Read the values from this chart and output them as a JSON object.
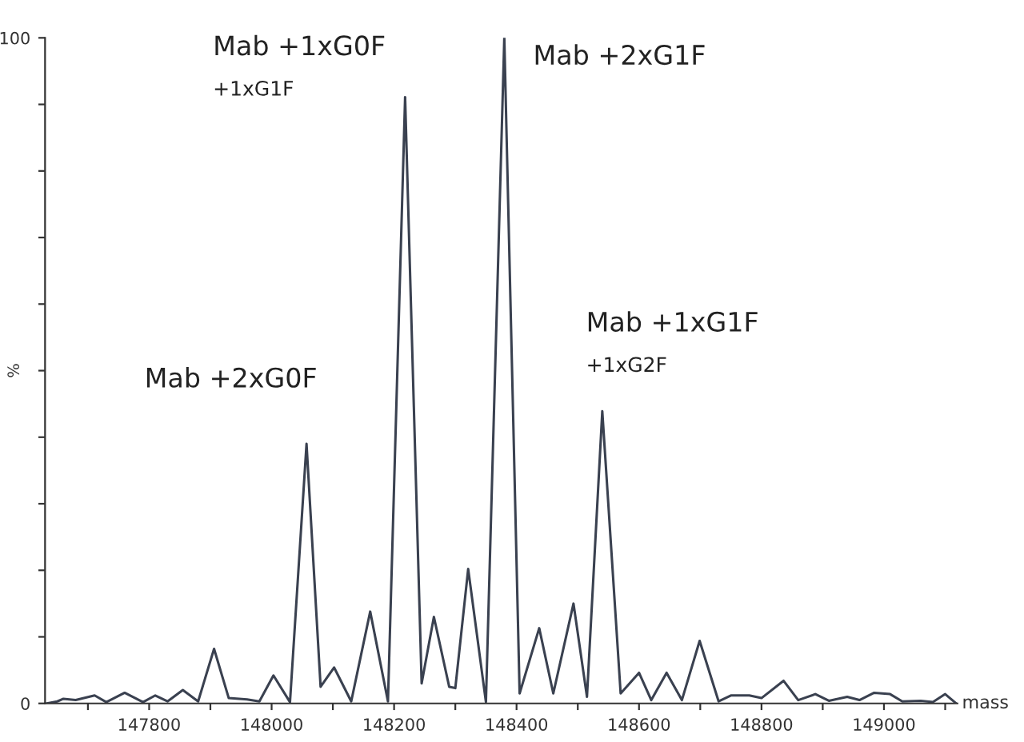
{
  "chart_data": {
    "type": "line",
    "xlabel": "mass",
    "ylabel": "%",
    "x": [
      147633,
      147650,
      147660,
      147680,
      147711,
      147730,
      147760,
      147790,
      147810,
      147830,
      147855,
      147880,
      147906,
      147930,
      147960,
      147980,
      148003,
      148030,
      148057,
      148080,
      148102,
      148130,
      148161,
      148190,
      148218,
      148245,
      148265,
      148290,
      148300,
      148321,
      148350,
      148380,
      148405,
      148437,
      148460,
      148493,
      148515,
      148540,
      148570,
      148600,
      148620,
      148645,
      148670,
      148699,
      148730,
      148750,
      148780,
      148800,
      148836,
      148860,
      148888,
      148910,
      148940,
      148960,
      148984,
      149010,
      149030,
      149060,
      149080,
      149100,
      149118
    ],
    "series": [
      {
        "color": "#3a4150",
        "values": [
          0,
          0.3,
          0.7,
          0.5,
          1.2,
          0.2,
          1.6,
          0.2,
          1.2,
          0.3,
          2,
          0.3,
          8.2,
          0.8,
          0.6,
          0.3,
          4.2,
          0.2,
          39,
          2.5,
          5.4,
          0.3,
          13.8,
          0.3,
          91.1,
          3,
          13,
          2.5,
          2.3,
          20.2,
          0.2,
          100,
          1.5,
          11.3,
          1.5,
          15,
          1,
          43.9,
          1.5,
          4.6,
          0.5,
          4.6,
          0.5,
          9.4,
          0.3,
          1.2,
          1.2,
          0.8,
          3.4,
          0.5,
          1.4,
          0.4,
          1,
          0.5,
          1.6,
          1.4,
          0.3,
          0.4,
          0.2,
          1.4,
          0
        ]
      }
    ],
    "xlim": [
      147630,
      149120
    ],
    "xticks": [
      {
        "value": 147700,
        "label": null
      },
      147800,
      {
        "value": 147900,
        "label": null
      },
      148000,
      {
        "value": 148100,
        "label": null
      },
      148200,
      {
        "value": 148300,
        "label": null
      },
      148400,
      {
        "value": 148500,
        "label": null
      },
      148600,
      {
        "value": 148700,
        "label": null
      },
      148800,
      {
        "value": 148900,
        "label": null
      },
      149000,
      {
        "value": 149100,
        "label": null
      }
    ],
    "ylim": [
      0,
      100
    ],
    "yticks": [
      0,
      {
        "value": 10,
        "label": null
      },
      {
        "value": 20,
        "label": null
      },
      {
        "value": 30,
        "label": null
      },
      {
        "value": 40,
        "label": null
      },
      {
        "value": 50,
        "label": null
      },
      {
        "value": 60,
        "label": null
      },
      {
        "value": 70,
        "label": null
      },
      {
        "value": 80,
        "label": null
      },
      {
        "value": 90,
        "label": null
      },
      100
    ],
    "grid": false,
    "marker": "none",
    "line_style": "solid",
    "annotations": [
      "Mab +2xG0F",
      "Mab +1xG0F\n+1xG1F",
      "Mab +2xG1F",
      "Mab +1xG1F\n+1xG2F"
    ]
  }
}
